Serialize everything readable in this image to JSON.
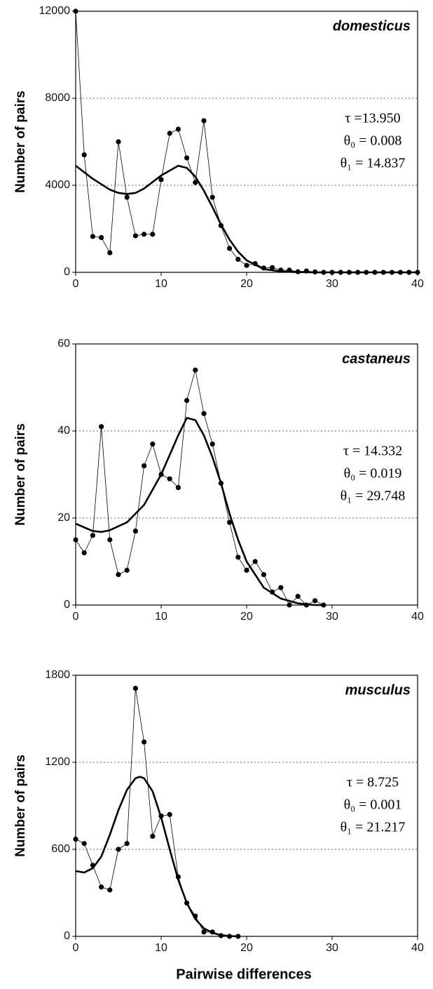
{
  "chart_data": [
    {
      "type": "line",
      "label": "domesticus",
      "y_label": "Number of pairs",
      "annotations": [
        "τ =13.950",
        "θ₀ = 0.008",
        "θ₁ = 14.837"
      ],
      "xlim": [
        0,
        40
      ],
      "xticks": [
        0,
        10,
        20,
        30,
        40
      ],
      "ylim": [
        0,
        12000
      ],
      "yticks": [
        0,
        4000,
        8000,
        12000
      ],
      "grid": true,
      "series": [
        {
          "color": "#000000",
          "marker": true,
          "line_width": 0.8,
          "x": [
            0,
            1,
            2,
            3,
            4,
            5,
            6,
            7,
            8,
            9,
            10,
            11,
            12,
            13,
            14,
            15,
            16,
            17,
            18,
            19,
            20,
            21,
            22,
            23,
            24,
            25,
            26,
            27,
            28,
            29,
            30,
            31,
            32,
            33,
            34,
            35,
            36,
            37,
            38,
            39,
            40
          ],
          "values": [
            12000,
            5400,
            1650,
            1600,
            900,
            6000,
            3450,
            1680,
            1750,
            1750,
            4260,
            6390,
            6580,
            5260,
            4130,
            6970,
            3450,
            2150,
            1100,
            600,
            320,
            400,
            200,
            220,
            100,
            100,
            30,
            60,
            20,
            0,
            0,
            0,
            0,
            0,
            0,
            0,
            0,
            0,
            0,
            0,
            0
          ]
        },
        {
          "color": "#000000",
          "marker": false,
          "line_width": 2.6,
          "x": [
            0,
            2,
            4,
            5,
            6,
            7,
            8,
            10,
            12,
            13,
            14,
            15,
            16,
            17,
            18,
            19,
            20,
            22,
            24,
            26,
            28,
            32,
            40
          ],
          "values": [
            4900,
            4300,
            3800,
            3650,
            3600,
            3650,
            3850,
            4450,
            4900,
            4800,
            4400,
            3750,
            3000,
            2200,
            1500,
            950,
            550,
            150,
            40,
            10,
            0,
            0,
            0
          ]
        }
      ]
    },
    {
      "type": "line",
      "label": "castaneus",
      "y_label": "Number of pairs",
      "annotations": [
        "τ = 14.332",
        "θ₀ = 0.019",
        "θ₁ = 29.748"
      ],
      "xlim": [
        0,
        40
      ],
      "xticks": [
        0,
        10,
        20,
        30,
        40
      ],
      "ylim": [
        0,
        60
      ],
      "yticks": [
        0,
        20,
        40,
        60
      ],
      "grid": true,
      "series": [
        {
          "color": "#000000",
          "marker": true,
          "line_width": 0.8,
          "x": [
            0,
            1,
            2,
            3,
            4,
            5,
            6,
            7,
            8,
            9,
            10,
            11,
            12,
            13,
            14,
            15,
            16,
            17,
            18,
            19,
            20,
            21,
            22,
            23,
            24,
            25,
            26,
            27,
            28,
            29
          ],
          "values": [
            15,
            12,
            16,
            41,
            15,
            7,
            8,
            17,
            32,
            37,
            30,
            29,
            27,
            47,
            54,
            44,
            37,
            28,
            19,
            11,
            8,
            10,
            7,
            3,
            4,
            0,
            2,
            0,
            1,
            0
          ]
        },
        {
          "color": "#000000",
          "marker": false,
          "line_width": 2.6,
          "x": [
            0,
            2,
            3,
            4,
            6,
            8,
            10,
            12,
            13,
            14,
            15,
            16,
            17,
            18,
            19,
            20,
            22,
            24,
            26,
            28,
            29
          ],
          "values": [
            18.7,
            17,
            16.8,
            17.2,
            19,
            23,
            30,
            39,
            43,
            42.5,
            39,
            34,
            28,
            21,
            15,
            10,
            4,
            1.5,
            0.4,
            0,
            0
          ]
        }
      ]
    },
    {
      "type": "line",
      "label": "musculus",
      "y_label": "Number of pairs",
      "x_label": "Pairwise differences",
      "annotations": [
        "τ = 8.725",
        "θ₀ = 0.001",
        "θ₁ = 21.217"
      ],
      "xlim": [
        0,
        40
      ],
      "xticks": [
        0,
        10,
        20,
        30,
        40
      ],
      "ylim": [
        0,
        1800
      ],
      "yticks": [
        0,
        600,
        1200,
        1800
      ],
      "grid": true,
      "series": [
        {
          "color": "#000000",
          "marker": true,
          "line_width": 0.8,
          "x": [
            0,
            1,
            2,
            3,
            4,
            5,
            6,
            7,
            8,
            9,
            10,
            11,
            12,
            13,
            14,
            15,
            16,
            17,
            18,
            19
          ],
          "values": [
            670,
            640,
            490,
            340,
            320,
            600,
            640,
            1710,
            1340,
            690,
            830,
            840,
            410,
            230,
            140,
            30,
            30,
            5,
            0,
            0
          ]
        },
        {
          "color": "#000000",
          "marker": false,
          "line_width": 2.6,
          "x": [
            0,
            1,
            2,
            3,
            4,
            5,
            6,
            7,
            7.5,
            8,
            9,
            10,
            11,
            12,
            13,
            14,
            15,
            16,
            17,
            18,
            19
          ],
          "values": [
            450,
            440,
            470,
            550,
            700,
            870,
            1010,
            1090,
            1100,
            1090,
            1000,
            820,
            600,
            390,
            230,
            120,
            55,
            25,
            8,
            2,
            0
          ]
        }
      ]
    }
  ]
}
